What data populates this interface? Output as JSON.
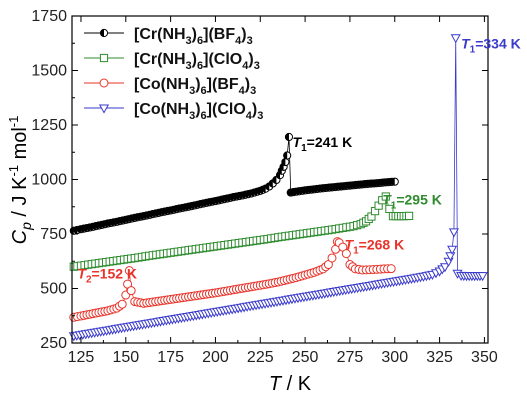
{
  "chart_data": {
    "type": "scatter",
    "xlabel_var": "T",
    "xlabel_unit": " / K",
    "ylabel_var": "C",
    "ylabel_sub": "p",
    "ylabel_units": " / J K",
    "ylabel_sup1": "-1",
    "ylabel_mol": " mol",
    "ylabel_sup2": "-1",
    "xlim": [
      120,
      352
    ],
    "ylim": [
      250,
      1750
    ],
    "xticks": [
      125,
      150,
      175,
      200,
      225,
      250,
      275,
      300,
      325,
      350
    ],
    "yticks": [
      250,
      500,
      750,
      1000,
      1250,
      1500,
      1750
    ],
    "legend_position": "top-left",
    "series": [
      {
        "name": "[Cr(NH3)6](BF4)3",
        "legend_parts": [
          "[Cr(NH",
          "3",
          ")",
          "6",
          "](BF",
          "4",
          ")",
          "3"
        ],
        "color": "#000000",
        "marker": "half-circle",
        "points": [
          [
            121,
            765
          ],
          [
            125,
            772
          ],
          [
            130,
            780
          ],
          [
            135,
            789
          ],
          [
            140,
            798
          ],
          [
            145,
            806
          ],
          [
            150,
            815
          ],
          [
            155,
            824
          ],
          [
            160,
            832
          ],
          [
            165,
            841
          ],
          [
            170,
            850
          ],
          [
            175,
            858
          ],
          [
            180,
            867
          ],
          [
            185,
            875
          ],
          [
            190,
            884
          ],
          [
            195,
            893
          ],
          [
            200,
            901
          ],
          [
            205,
            910
          ],
          [
            210,
            919
          ],
          [
            215,
            927
          ],
          [
            220,
            936
          ],
          [
            225,
            948
          ],
          [
            228,
            958
          ],
          [
            230,
            968
          ],
          [
            232,
            982
          ],
          [
            234,
            998
          ],
          [
            236,
            1020
          ],
          [
            237,
            1040
          ],
          [
            238,
            1058
          ],
          [
            239,
            1080
          ],
          [
            240,
            1110
          ],
          [
            241,
            1195
          ],
          [
            242,
            940
          ],
          [
            245,
            944
          ],
          [
            250,
            950
          ],
          [
            255,
            955
          ],
          [
            260,
            960
          ],
          [
            265,
            964
          ],
          [
            270,
            968
          ],
          [
            275,
            972
          ],
          [
            280,
            976
          ],
          [
            285,
            980
          ],
          [
            290,
            983
          ],
          [
            295,
            987
          ],
          [
            300,
            990
          ]
        ]
      },
      {
        "name": "[Cr(NH3)6](ClO4)3",
        "legend_parts": [
          "[Cr(NH",
          "3",
          ")",
          "6",
          "](ClO",
          "4",
          ")",
          "3"
        ],
        "color": "#2e8b2e",
        "marker": "square",
        "points": [
          [
            121,
            600
          ],
          [
            127,
            607
          ],
          [
            133,
            614
          ],
          [
            139,
            621
          ],
          [
            145,
            628
          ],
          [
            151,
            635
          ],
          [
            157,
            642
          ],
          [
            163,
            650
          ],
          [
            169,
            657
          ],
          [
            175,
            664
          ],
          [
            181,
            671
          ],
          [
            187,
            678
          ],
          [
            193,
            685
          ],
          [
            199,
            692
          ],
          [
            205,
            699
          ],
          [
            211,
            706
          ],
          [
            217,
            713
          ],
          [
            223,
            720
          ],
          [
            229,
            727
          ],
          [
            235,
            735
          ],
          [
            241,
            742
          ],
          [
            247,
            749
          ],
          [
            253,
            756
          ],
          [
            259,
            763
          ],
          [
            265,
            770
          ],
          [
            271,
            778
          ],
          [
            277,
            786
          ],
          [
            281,
            795
          ],
          [
            284,
            808
          ],
          [
            287,
            830
          ],
          [
            289,
            855
          ],
          [
            291,
            880
          ],
          [
            293,
            905
          ],
          [
            295,
            922
          ],
          [
            297,
            865
          ],
          [
            299,
            832
          ],
          [
            302,
            832
          ],
          [
            305,
            832
          ],
          [
            308,
            833
          ]
        ]
      },
      {
        "name": "[Co(NH3)6](BF4)3",
        "legend_parts": [
          "[Co(NH",
          "3",
          ")",
          "6",
          "](BF",
          "4",
          ")",
          "3"
        ],
        "color": "#e8332a",
        "marker": "circle",
        "points": [
          [
            121,
            368
          ],
          [
            125,
            374
          ],
          [
            130,
            382
          ],
          [
            135,
            390
          ],
          [
            140,
            398
          ],
          [
            145,
            410
          ],
          [
            148,
            428
          ],
          [
            150,
            470
          ],
          [
            151,
            520
          ],
          [
            152,
            582
          ],
          [
            153,
            490
          ],
          [
            155,
            440
          ],
          [
            160,
            432
          ],
          [
            165,
            438
          ],
          [
            170,
            444
          ],
          [
            175,
            450
          ],
          [
            180,
            456
          ],
          [
            185,
            462
          ],
          [
            190,
            468
          ],
          [
            195,
            474
          ],
          [
            200,
            480
          ],
          [
            205,
            487
          ],
          [
            210,
            494
          ],
          [
            215,
            501
          ],
          [
            220,
            508
          ],
          [
            225,
            515
          ],
          [
            230,
            522
          ],
          [
            235,
            530
          ],
          [
            240,
            540
          ],
          [
            245,
            550
          ],
          [
            250,
            562
          ],
          [
            255,
            574
          ],
          [
            260,
            590
          ],
          [
            263,
            610
          ],
          [
            265,
            640
          ],
          [
            267,
            680
          ],
          [
            268,
            715
          ],
          [
            269,
            710
          ],
          [
            271,
            690
          ],
          [
            273,
            660
          ],
          [
            275,
            610
          ],
          [
            278,
            590
          ],
          [
            282,
            585
          ],
          [
            286,
            586
          ],
          [
            290,
            588
          ],
          [
            294,
            590
          ],
          [
            298,
            591
          ]
        ]
      },
      {
        "name": "[Co(NH3)6](ClO4)3",
        "legend_parts": [
          "[Co(NH",
          "3",
          ")",
          "6",
          "](ClO",
          "4",
          ")",
          "3"
        ],
        "color": "#3a3acc",
        "marker": "down-triangle",
        "points": [
          [
            121,
            283
          ],
          [
            126,
            290
          ],
          [
            131,
            297
          ],
          [
            136,
            304
          ],
          [
            141,
            311
          ],
          [
            146,
            318
          ],
          [
            151,
            325
          ],
          [
            156,
            332
          ],
          [
            161,
            339
          ],
          [
            166,
            346
          ],
          [
            171,
            353
          ],
          [
            176,
            360
          ],
          [
            181,
            367
          ],
          [
            186,
            374
          ],
          [
            191,
            381
          ],
          [
            196,
            388
          ],
          [
            201,
            395
          ],
          [
            206,
            402
          ],
          [
            211,
            409
          ],
          [
            216,
            416
          ],
          [
            221,
            423
          ],
          [
            226,
            430
          ],
          [
            231,
            437
          ],
          [
            236,
            444
          ],
          [
            241,
            451
          ],
          [
            246,
            458
          ],
          [
            251,
            465
          ],
          [
            256,
            472
          ],
          [
            261,
            479
          ],
          [
            266,
            486
          ],
          [
            271,
            493
          ],
          [
            276,
            500
          ],
          [
            281,
            507
          ],
          [
            286,
            514
          ],
          [
            291,
            521
          ],
          [
            296,
            528
          ],
          [
            301,
            535
          ],
          [
            306,
            542
          ],
          [
            311,
            549
          ],
          [
            316,
            556
          ],
          [
            321,
            565
          ],
          [
            325,
            580
          ],
          [
            328,
            600
          ],
          [
            330,
            625
          ],
          [
            331,
            650
          ],
          [
            332,
            680
          ],
          [
            333,
            760
          ],
          [
            334,
            1650
          ],
          [
            335,
            570
          ],
          [
            337,
            560
          ],
          [
            340,
            559
          ],
          [
            343,
            559
          ],
          [
            346,
            559
          ],
          [
            349,
            559
          ]
        ]
      }
    ],
    "annotations": [
      {
        "var": "T",
        "sub": "1",
        "text": "=241 K",
        "color": "#000000",
        "x": 243,
        "y": 1150
      },
      {
        "var": "T",
        "sub": "1",
        "text": "=295 K",
        "color": "#2e8b2e",
        "x": 293,
        "y": 885
      },
      {
        "var": "T",
        "sub": "1",
        "text": "=268 K",
        "color": "#e8332a",
        "x": 272,
        "y": 680
      },
      {
        "var": "T",
        "sub": "2",
        "text": "=152 K",
        "color": "#e8332a",
        "x": 123,
        "y": 545
      },
      {
        "var": "T",
        "sub": "1",
        "text": "=334 K",
        "color": "#3a3acc",
        "x": 337,
        "y": 1600
      }
    ]
  }
}
